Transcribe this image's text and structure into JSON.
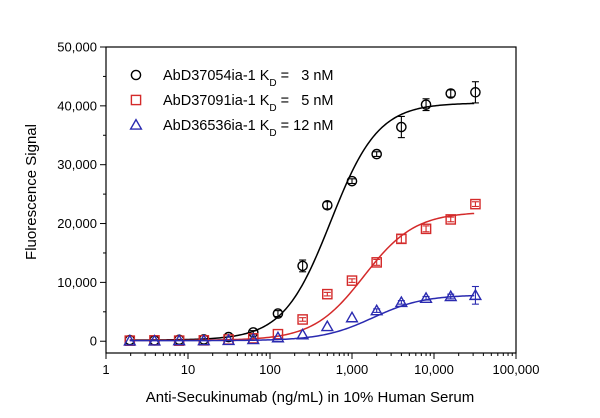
{
  "chart_data": {
    "type": "scatter",
    "xlabel": "Anti-Secukinumab (ng/mL) in 10% Human Serum",
    "ylabel": "Fluorescence Signal",
    "xscale": "log",
    "xlim": [
      1,
      100000
    ],
    "ylim": [
      -2000,
      50000
    ],
    "x_ticks": [
      1,
      10,
      100,
      1000,
      10000,
      100000
    ],
    "x_tick_labels": [
      "1",
      "10",
      "100",
      "1,000",
      "10,000",
      "100,000"
    ],
    "y_ticks": [
      0,
      10000,
      20000,
      30000,
      40000,
      50000
    ],
    "y_tick_labels": [
      "0",
      "10,000",
      "20,000",
      "30,000",
      "40,000",
      "50,000"
    ],
    "grid": false,
    "legend_position": "top-left",
    "x": [
      1.95,
      3.9,
      7.8,
      15.6,
      31.25,
      62.5,
      125,
      250,
      500,
      1000,
      2000,
      4000,
      8000,
      16000,
      32000
    ],
    "series": [
      {
        "name_main": "AbD37054ia-1 K",
        "name_sub": "D",
        "name_suffix": " =   3 nM",
        "color": "#000000",
        "marker": "circle",
        "values": [
          200,
          150,
          250,
          300,
          700,
          1500,
          4700,
          12800,
          23100,
          27200,
          31800,
          36400,
          40200,
          42100,
          42300
        ],
        "errors": [
          0,
          0,
          0,
          0,
          0,
          300,
          500,
          1000,
          600,
          400,
          400,
          1800,
          1000,
          600,
          1800
        ],
        "fit": {
          "bottom": 200,
          "top": 40500,
          "ec50": 550,
          "hill": 1.5
        }
      },
      {
        "name_main": "AbD37091ia-1 K",
        "name_sub": "D",
        "name_suffix": " =   5 nM",
        "color": "#d42a2a",
        "marker": "square",
        "values": [
          100,
          150,
          100,
          150,
          300,
          500,
          1200,
          3700,
          8000,
          10300,
          13400,
          17400,
          19100,
          20700,
          23300
        ],
        "errors": [
          0,
          0,
          0,
          0,
          0,
          0,
          0,
          300,
          300,
          300,
          500,
          700,
          500,
          400,
          400
        ],
        "fit": {
          "bottom": 150,
          "top": 22000,
          "ec50": 1400,
          "hill": 1.4
        }
      },
      {
        "name_main": "AbD36536ia-1 K",
        "name_sub": "D",
        "name_suffix": " = 12 nM",
        "color": "#2a2ab0",
        "marker": "triangle",
        "values": [
          50,
          50,
          100,
          100,
          150,
          300,
          600,
          1100,
          2500,
          4000,
          5200,
          6600,
          7300,
          7600,
          7800
        ],
        "errors": [
          0,
          0,
          0,
          0,
          0,
          0,
          0,
          0,
          0,
          0,
          300,
          300,
          300,
          400,
          1500
        ],
        "fit": {
          "bottom": 100,
          "top": 7900,
          "ec50": 1800,
          "hill": 1.4
        }
      }
    ]
  }
}
